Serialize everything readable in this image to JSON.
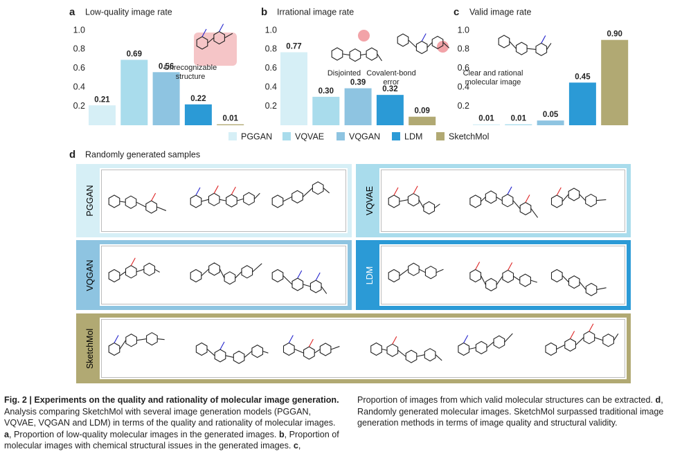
{
  "chart_data": [
    {
      "type": "bar",
      "panel": "a",
      "title": "Low-quality image rate",
      "categories": [
        "PGGAN",
        "VQVAE",
        "VQGAN",
        "LDM",
        "SketchMol"
      ],
      "values": [
        0.21,
        0.69,
        0.56,
        0.22,
        0.01
      ],
      "colors": [
        "#d6eff6",
        "#a9dcec",
        "#8ec4e1",
        "#2b9ad6",
        "#b1a973"
      ],
      "ylim": [
        0,
        1
      ],
      "yticks": [
        0.2,
        0.4,
        0.6,
        0.8,
        {
          "value": 1,
          "label": "1.0"
        }
      ],
      "annotations": [
        "Unrecognizable structure"
      ]
    },
    {
      "type": "bar",
      "panel": "b",
      "title": "Irrational image rate",
      "categories": [
        "PGGAN",
        "VQVAE",
        "VQGAN",
        "LDM",
        "SketchMol"
      ],
      "values": [
        0.77,
        0.3,
        0.39,
        0.32,
        0.09
      ],
      "value_labels": [
        "0.77",
        "0.30",
        "0.39",
        "0.32",
        "0.09"
      ],
      "colors": [
        "#d6eff6",
        "#a9dcec",
        "#8ec4e1",
        "#2b9ad6",
        "#b1a973"
      ],
      "ylim": [
        0,
        1
      ],
      "yticks": [
        0.2,
        0.4,
        0.6,
        0.8,
        {
          "value": 1,
          "label": "1.0"
        }
      ],
      "annotations": [
        "Disjointed",
        "Covalent-bond error"
      ]
    },
    {
      "type": "bar",
      "panel": "c",
      "title": "Valid image rate",
      "categories": [
        "PGGAN",
        "VQVAE",
        "VQGAN",
        "LDM",
        "SketchMol"
      ],
      "values": [
        0.01,
        0.01,
        0.05,
        0.45,
        0.9
      ],
      "value_labels": [
        "0.01",
        "0.01",
        "0.05",
        "0.45",
        "0.90"
      ],
      "colors": [
        "#d6eff6",
        "#a9dcec",
        "#8ec4e1",
        "#2b9ad6",
        "#b1a973"
      ],
      "ylim": [
        0,
        1
      ],
      "yticks": [
        0.2,
        0.4,
        0.6,
        0.8,
        {
          "value": 1,
          "label": "1.0"
        }
      ],
      "annotations": [
        "Clear and rational molecular image"
      ]
    }
  ],
  "panel_d": {
    "panel": "d",
    "title": "Randomly generated samples",
    "samples": [
      {
        "label": "PGGAN",
        "color": "#d6eff6"
      },
      {
        "label": "VQVAE",
        "color": "#a9dcec"
      },
      {
        "label": "VQGAN",
        "color": "#8ec4e1"
      },
      {
        "label": "LDM",
        "color": "#2b9ad6"
      },
      {
        "label": "SketchMol",
        "color": "#b1a973"
      }
    ]
  },
  "caption": [
    {
      "text": "Fig. 2 | Experiments on the quality and rationality of molecular image generation.",
      "bold": true
    },
    {
      "text": " Analysis comparing SketchMol with several image generation models (PGGAN, VQVAE, VQGAN and LDM) in terms of the quality and rationality of molecular images. ",
      "bold": false
    },
    {
      "text": "a",
      "bold": true
    },
    {
      "text": ", Proportion of low-quality molecular images in the generated images. ",
      "bold": false
    },
    {
      "text": "b",
      "bold": true
    },
    {
      "text": ", Proportion of molecular images with chemical structural issues in the generated images. ",
      "bold": false
    },
    {
      "text": "c",
      "bold": true
    },
    {
      "text": ", Proportion of images from which valid molecular structures can be extracted. ",
      "bold": false
    },
    {
      "text": "d",
      "bold": true
    },
    {
      "text": ", Randomly generated molecular images. SketchMol surpassed traditional image generation methods in terms of image quality and structural validity.",
      "bold": false
    }
  ]
}
